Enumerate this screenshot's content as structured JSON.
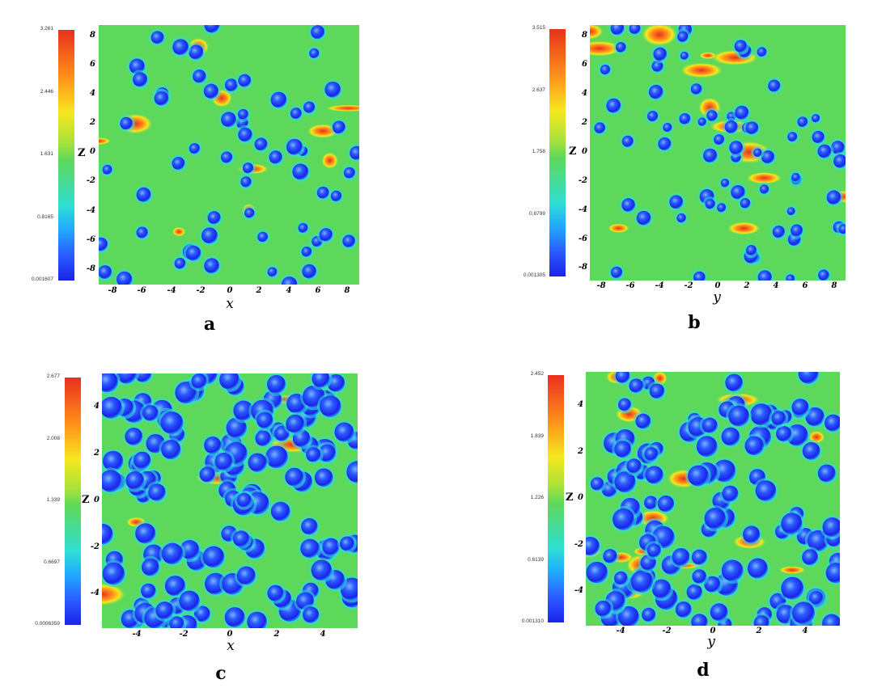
{
  "chart_data": [
    {
      "panel": "a",
      "type": "heatmap",
      "xlabel": "x",
      "ylabel": "Z",
      "xticks": [
        "-8",
        "-6",
        "-4",
        "-2",
        "0",
        "2",
        "4",
        "6",
        "8"
      ],
      "yticks": [
        "8",
        "6",
        "4",
        "2",
        "0",
        "-2",
        "-4",
        "-6",
        "-8"
      ],
      "xlim": [
        -8.8,
        8.8
      ],
      "ylim": [
        -8.8,
        8.8
      ],
      "colorbar": {
        "min": 0.001607,
        "max": 3.261,
        "ticks": [
          "3.261",
          "2.446",
          "1.631",
          "0.8165",
          "0.001607"
        ]
      },
      "colormap": [
        "#1b22e8",
        "#2a5cff",
        "#20a8ff",
        "#2fe0d2",
        "#5ed85a",
        "#a8e23a",
        "#f6e81e",
        "#ff8c1a",
        "#e8301c"
      ]
    },
    {
      "panel": "b",
      "type": "heatmap",
      "xlabel": "y",
      "ylabel": "Z",
      "xticks": [
        "-8",
        "-6",
        "-4",
        "-2",
        "0",
        "2",
        "4",
        "6",
        "8"
      ],
      "yticks": [
        "8",
        "6",
        "4",
        "2",
        "0",
        "-2",
        "-4",
        "-6",
        "-8"
      ],
      "xlim": [
        -8.8,
        8.8
      ],
      "ylim": [
        -8.8,
        8.8
      ],
      "colorbar": {
        "min": 0.001305,
        "max": 3.515,
        "ticks": [
          "3.515",
          "2.637",
          "1.758",
          "0.8799",
          "0.001305"
        ]
      },
      "colormap": [
        "#1b22e8",
        "#2a5cff",
        "#20a8ff",
        "#2fe0d2",
        "#5ed85a",
        "#a8e23a",
        "#f6e81e",
        "#ff8c1a",
        "#e8301c"
      ]
    },
    {
      "panel": "c",
      "type": "heatmap",
      "xlabel": "x",
      "ylabel": "Z",
      "xticks": [
        "-4",
        "-2",
        "0",
        "2",
        "4"
      ],
      "yticks": [
        "4",
        "2",
        "0",
        "-2",
        "-4"
      ],
      "xlim": [
        -5.5,
        5.5
      ],
      "ylim": [
        -5.5,
        5.5
      ],
      "colorbar": {
        "min": 0.0006359,
        "max": 2.677,
        "ticks": [
          "2.677",
          "2.008",
          "1.339",
          "0.6697",
          "0.0006359"
        ]
      },
      "colormap": [
        "#1b22e8",
        "#2a5cff",
        "#20a8ff",
        "#2fe0d2",
        "#5ed85a",
        "#a8e23a",
        "#f6e81e",
        "#ff8c1a",
        "#e8301c"
      ]
    },
    {
      "panel": "d",
      "type": "heatmap",
      "xlabel": "y",
      "ylabel": "Z",
      "xticks": [
        "-4",
        "-2",
        "0",
        "2",
        "4"
      ],
      "yticks": [
        "4",
        "2",
        "0",
        "-2",
        "-4"
      ],
      "xlim": [
        -5.5,
        5.5
      ],
      "ylim": [
        -5.5,
        5.5
      ],
      "colorbar": {
        "min": 0.00131,
        "max": 2.452,
        "ticks": [
          "2.452",
          "1.839",
          "1.226",
          "0.6139",
          "0.001310"
        ]
      },
      "colormap": [
        "#1b22e8",
        "#2a5cff",
        "#20a8ff",
        "#2fe0d2",
        "#5ed85a",
        "#a8e23a",
        "#f6e81e",
        "#ff8c1a",
        "#e8301c"
      ]
    }
  ],
  "panel_labels": [
    "a",
    "b",
    "c",
    "d"
  ]
}
